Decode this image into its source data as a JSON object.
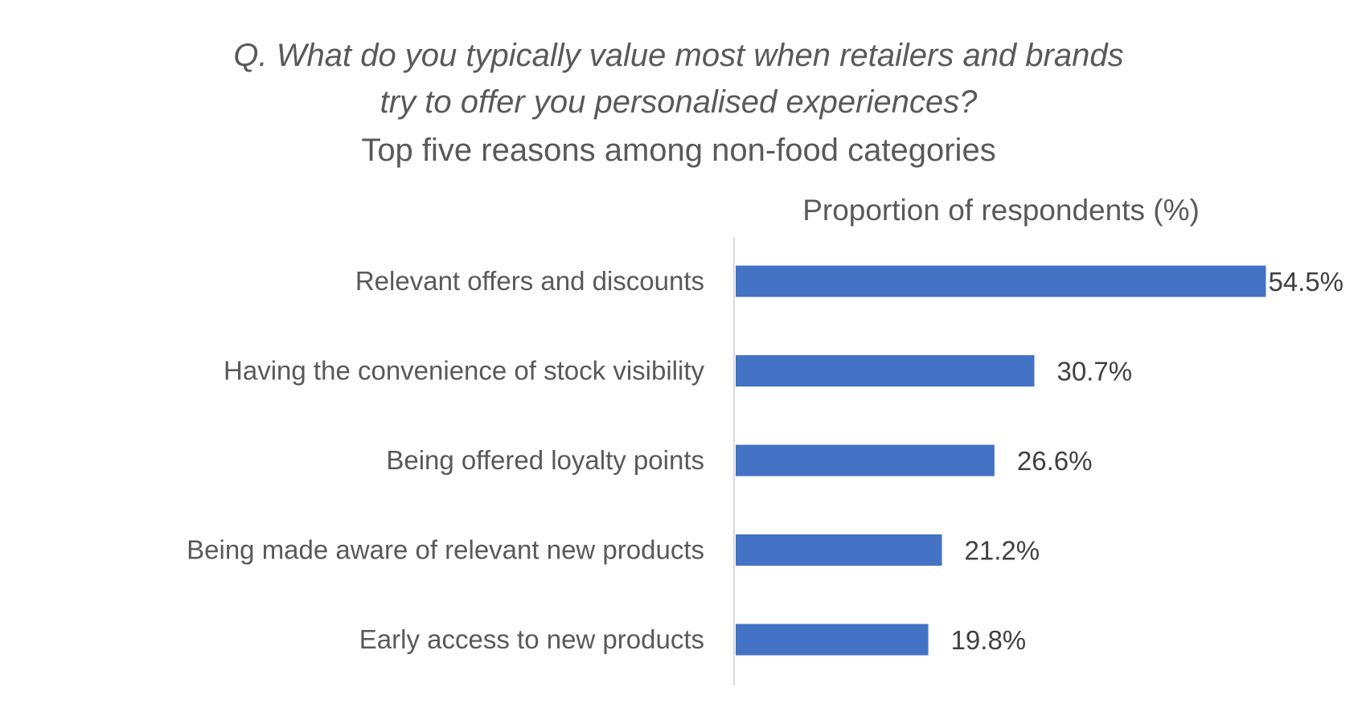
{
  "chart_data": {
    "type": "bar",
    "orientation": "horizontal",
    "title": [
      "Q. What do you typically value most when retailers and brands",
      "try to offer you personalised experiences?"
    ],
    "subtitle": "Top five reasons among non-food categories",
    "xlabel": "Proportion of respondents (%)",
    "categories": [
      "Relevant offers and discounts",
      "Having the convenience of stock visibility",
      "Being offered loyalty points",
      "Being made aware of relevant new products",
      "Early access to new products"
    ],
    "values": [
      54.5,
      30.7,
      26.6,
      21.2,
      19.8
    ],
    "value_labels": [
      "54.5%",
      "30.7%",
      "26.6%",
      "21.2%",
      "19.8%"
    ],
    "bar_color": "#4472C4",
    "grid": false,
    "legend": "none"
  }
}
